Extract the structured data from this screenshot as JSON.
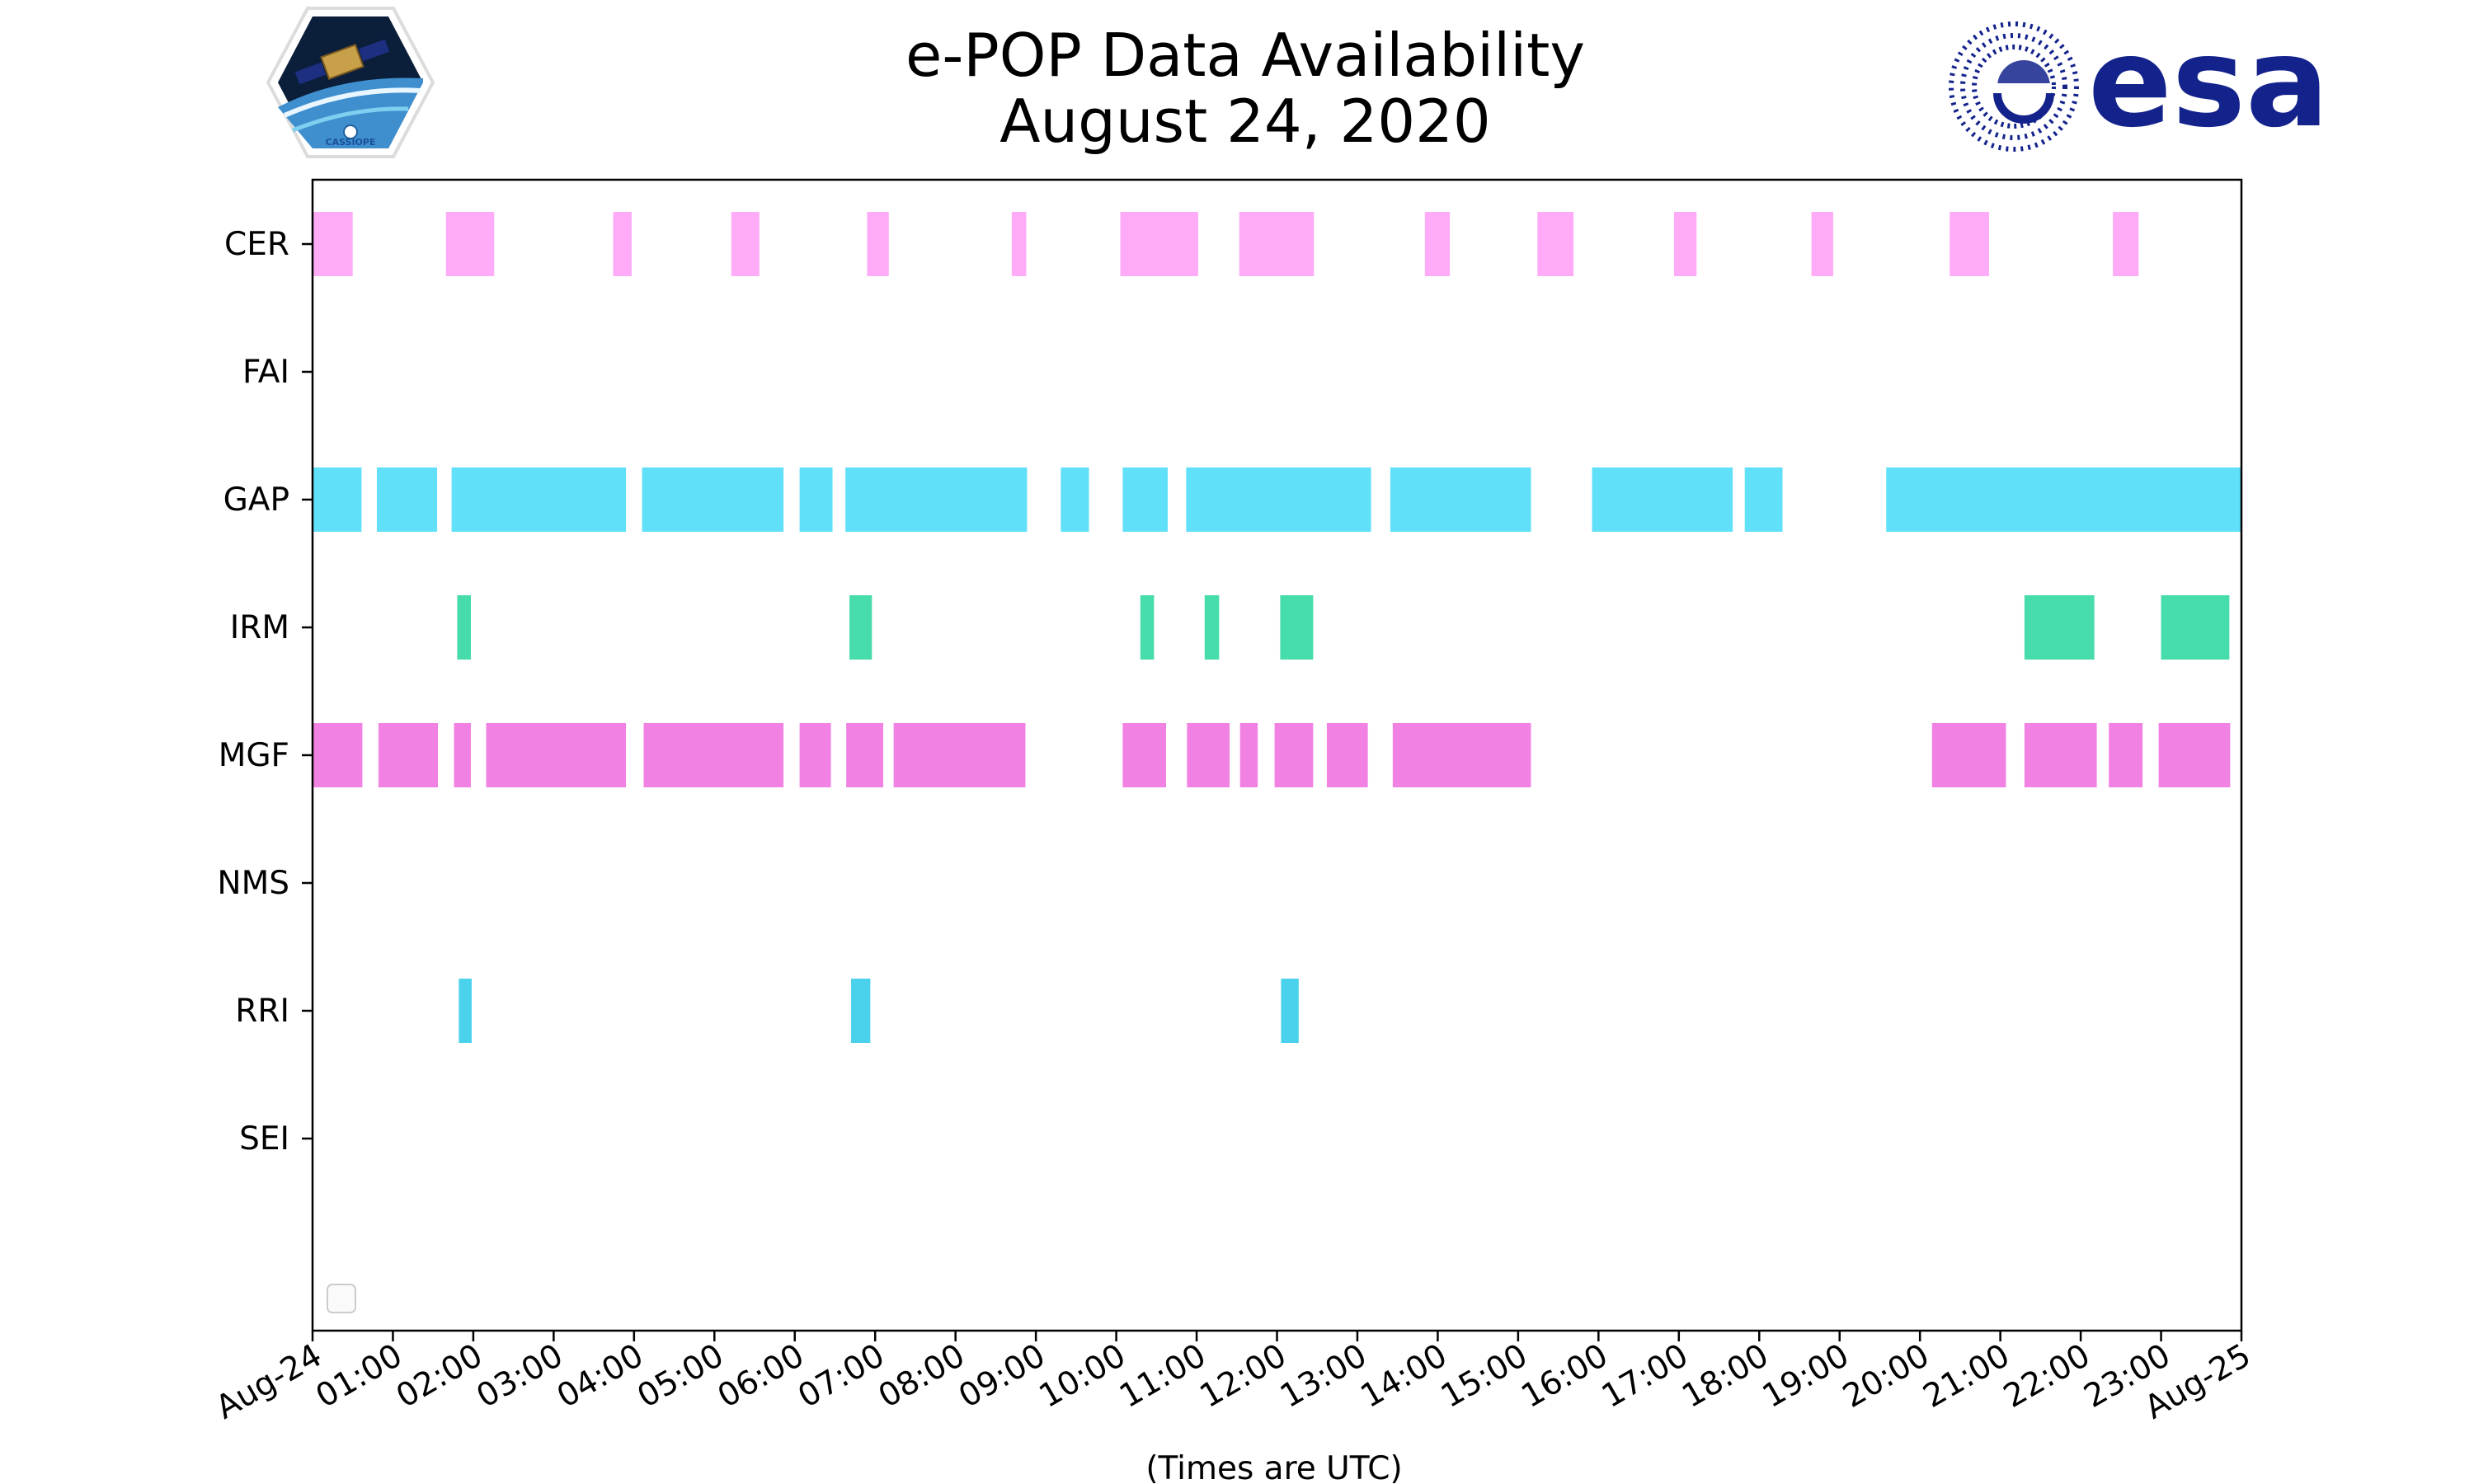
{
  "chart_data": {
    "type": "timeline",
    "title": [
      "e-POP Data Availability",
      "August 24, 2020"
    ],
    "xlabel": "(Times are UTC)",
    "ylabel": "",
    "xlim": [
      0,
      24
    ],
    "x_unit": "hours UTC",
    "categories": [
      "CER",
      "FAI",
      "GAP",
      "IRM",
      "MGF",
      "NMS",
      "RRI",
      "SEI"
    ],
    "xticks": [
      0,
      1,
      2,
      3,
      4,
      5,
      6,
      7,
      8,
      9,
      10,
      11,
      12,
      13,
      14,
      15,
      16,
      17,
      18,
      19,
      20,
      21,
      22,
      23,
      24
    ],
    "xtick_labels": [
      "Aug-24",
      "01:00",
      "02:00",
      "03:00",
      "04:00",
      "05:00",
      "06:00",
      "07:00",
      "08:00",
      "09:00",
      "10:00",
      "11:00",
      "12:00",
      "13:00",
      "14:00",
      "15:00",
      "16:00",
      "17:00",
      "18:00",
      "19:00",
      "20:00",
      "21:00",
      "22:00",
      "23:00",
      "Aug-25"
    ],
    "grid": false,
    "legend": "empty box, lower-left",
    "series": [
      {
        "name": "CER",
        "color": "#ff99f5",
        "intervals": [
          [
            0.0,
            0.5
          ],
          [
            1.66,
            2.26
          ],
          [
            3.74,
            3.97
          ],
          [
            5.21,
            5.56
          ],
          [
            6.9,
            7.17
          ],
          [
            8.7,
            8.88
          ],
          [
            10.05,
            11.02
          ],
          [
            11.53,
            12.46
          ],
          [
            13.84,
            14.15
          ],
          [
            15.24,
            15.69
          ],
          [
            16.94,
            17.22
          ],
          [
            18.65,
            18.92
          ],
          [
            20.37,
            20.86
          ],
          [
            22.4,
            22.72
          ]
        ]
      },
      {
        "name": "FAI",
        "color": "#9999ff",
        "intervals": []
      },
      {
        "name": "GAP",
        "color": "#3dd9f8",
        "intervals": [
          [
            0.0,
            0.61
          ],
          [
            0.8,
            1.55
          ],
          [
            1.73,
            3.9
          ],
          [
            4.1,
            5.86
          ],
          [
            6.06,
            6.47
          ],
          [
            6.63,
            8.89
          ],
          [
            9.31,
            9.66
          ],
          [
            10.08,
            10.64
          ],
          [
            10.87,
            13.17
          ],
          [
            13.41,
            15.16
          ],
          [
            15.92,
            17.67
          ],
          [
            17.82,
            18.29
          ],
          [
            19.58,
            24.0
          ]
        ]
      },
      {
        "name": "IRM",
        "color": "#1fd49a",
        "intervals": [
          [
            1.8,
            1.97
          ],
          [
            6.68,
            6.96
          ],
          [
            10.3,
            10.47
          ],
          [
            11.1,
            11.28
          ],
          [
            12.04,
            12.45
          ],
          [
            21.3,
            22.17
          ],
          [
            23.0,
            23.85
          ]
        ]
      },
      {
        "name": "MGF",
        "color": "#ee66dd",
        "intervals": [
          [
            0.0,
            0.62
          ],
          [
            0.82,
            1.56
          ],
          [
            1.76,
            1.97
          ],
          [
            2.16,
            3.9
          ],
          [
            4.12,
            5.86
          ],
          [
            6.06,
            6.45
          ],
          [
            6.64,
            7.1
          ],
          [
            7.23,
            8.87
          ],
          [
            10.08,
            10.62
          ],
          [
            10.88,
            11.41
          ],
          [
            11.54,
            11.76
          ],
          [
            11.97,
            12.45
          ],
          [
            12.62,
            13.13
          ],
          [
            13.44,
            15.16
          ],
          [
            20.15,
            21.07
          ],
          [
            21.3,
            22.2
          ],
          [
            22.35,
            22.77
          ],
          [
            22.97,
            23.86
          ]
        ]
      },
      {
        "name": "NMS",
        "color": "#aaaaaa",
        "intervals": []
      },
      {
        "name": "RRI",
        "color": "#22c8e8",
        "intervals": [
          [
            1.82,
            1.98
          ],
          [
            6.7,
            6.94
          ],
          [
            12.05,
            12.27
          ]
        ]
      },
      {
        "name": "SEI",
        "color": "#dddddd",
        "intervals": []
      }
    ]
  },
  "logos": {
    "left": {
      "name": "CASSIOPE mission logo",
      "text": "CASSIOPE"
    },
    "right": {
      "name": "ESA logo",
      "text": "esa",
      "color": "#14238c"
    }
  }
}
